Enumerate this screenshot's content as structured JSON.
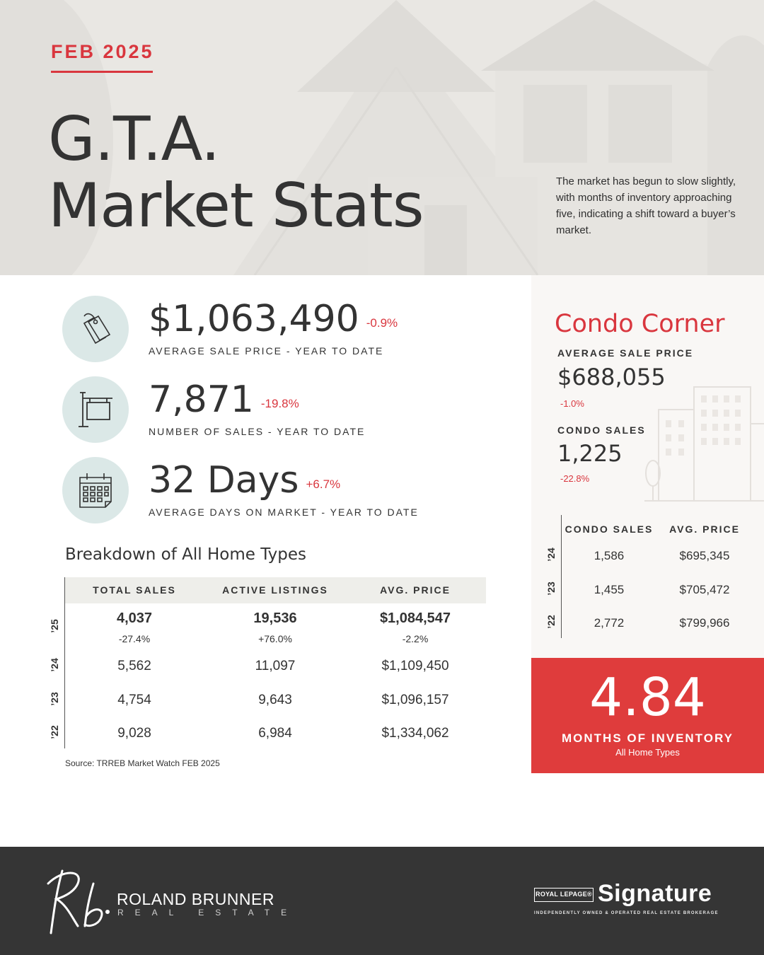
{
  "header": {
    "date": "FEB 2025",
    "title_line1": "G.T.A.",
    "title_line2": "Market Stats",
    "description": "The market has begun to slow slightly, with months of inventory approaching five, indicating a shift toward a buyer’s market."
  },
  "stats": [
    {
      "value": "$1,063,490",
      "change": "-0.9%",
      "label": "AVERAGE SALE PRICE - YEAR TO DATE",
      "icon": "price-tag-icon"
    },
    {
      "value": "7,871",
      "change": "-19.8%",
      "label": "NUMBER OF SALES - YEAR TO DATE",
      "icon": "for-sale-sign-icon"
    },
    {
      "value": "32 Days",
      "change": "+6.7%",
      "label": "AVERAGE DAYS ON MARKET - YEAR TO DATE",
      "icon": "calendar-icon"
    }
  ],
  "breakdown": {
    "title": "Breakdown of All Home Types",
    "columns": [
      "TOTAL SALES",
      "ACTIVE LISTINGS",
      "AVG. PRICE"
    ],
    "rows": [
      {
        "year": "’25",
        "values": [
          "4,037",
          "19,536",
          "$1,084,547"
        ],
        "changes": [
          "-27.4%",
          "+76.0%",
          "-2.2%"
        ]
      },
      {
        "year": "’24",
        "values": [
          "5,562",
          "11,097",
          "$1,109,450"
        ]
      },
      {
        "year": "’23",
        "values": [
          "4,754",
          "9,643",
          "$1,096,157"
        ]
      },
      {
        "year": "’22",
        "values": [
          "9,028",
          "6,984",
          "$1,334,062"
        ]
      }
    ],
    "source": "Source: TRREB Market Watch FEB 2025"
  },
  "condo": {
    "title": "Condo Corner",
    "avg_price_label": "AVERAGE SALE PRICE",
    "avg_price": "$688,055",
    "avg_price_change": "-1.0%",
    "sales_label": "CONDO SALES",
    "sales": "1,225",
    "sales_change": "-22.8%",
    "table_columns": [
      "CONDO SALES",
      "AVG. PRICE"
    ],
    "table_rows": [
      {
        "year": "’24",
        "values": [
          "1,586",
          "$695,345"
        ]
      },
      {
        "year": "’23",
        "values": [
          "1,455",
          "$705,472"
        ]
      },
      {
        "year": "’22",
        "values": [
          "2,772",
          "$799,966"
        ]
      }
    ]
  },
  "inventory": {
    "value": "4.84",
    "label": "MONTHS OF INVENTORY",
    "sub": "All Home Types"
  },
  "footer": {
    "brand_name": "ROLAND BRUNNER",
    "brand_sub": "REAL ESTATE",
    "partner_box": "ROYAL LEPAGE®",
    "partner_name": "Signature",
    "partner_tagline": "INDEPENDENTLY OWNED & OPERATED REAL ESTATE BROKERAGE"
  },
  "colors": {
    "accent": "#d9363e",
    "icon_bg": "#dbe8e7",
    "footer_bg": "#353535",
    "panel_bg": "#f9f7f5"
  }
}
